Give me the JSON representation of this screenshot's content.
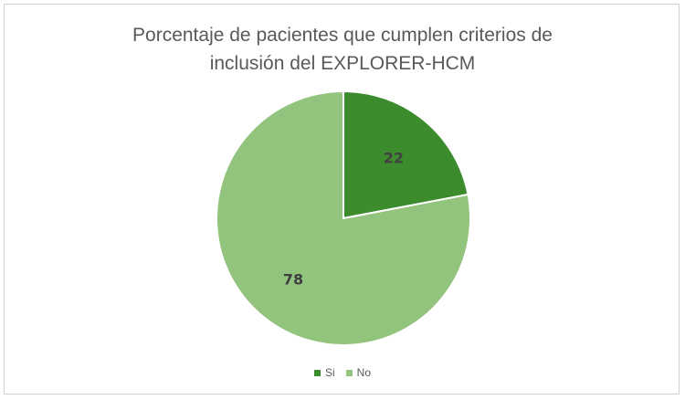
{
  "chart_data": {
    "type": "pie",
    "title_lines": [
      "Porcentaje de pacientes que cumplen criterios de",
      "inclusión del EXPLORER-HCM"
    ],
    "categories": [
      "Si",
      "No"
    ],
    "values": [
      22,
      78
    ],
    "data_labels": [
      "22",
      "78"
    ],
    "colors": [
      "#3c8c2d",
      "#93c47d"
    ],
    "legend_position": "bottom"
  }
}
